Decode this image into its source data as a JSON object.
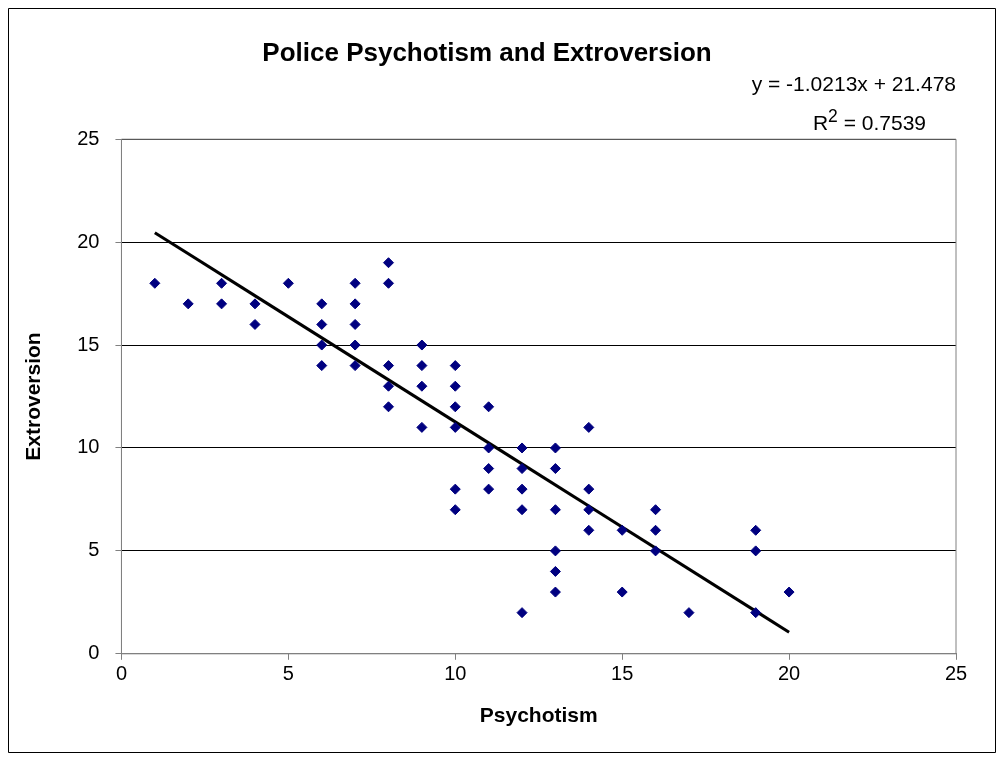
{
  "chart_data": {
    "type": "scatter",
    "title": "Police Psychotism and Extroversion",
    "xlabel": "Psychotism",
    "ylabel": "Extroversion",
    "annotations": [
      "y = -1.0213x + 21.478",
      "R$^{2}$ = 0.7539"
    ],
    "xlim": [
      0,
      25
    ],
    "xticks": [
      0,
      5,
      10,
      15,
      20,
      25
    ],
    "ylim": [
      0,
      25
    ],
    "yticks": [
      0,
      5,
      10,
      15,
      20,
      25
    ],
    "grid": "y",
    "legend": false,
    "marker": "diamond",
    "series": [
      {
        "type": "scatter",
        "color": "#000080",
        "x": [
          1,
          2,
          3,
          3,
          4,
          4,
          5,
          6,
          6,
          6,
          6,
          7,
          7,
          7,
          7,
          7,
          8,
          8,
          8,
          8,
          8,
          9,
          9,
          9,
          9,
          10,
          10,
          10,
          10,
          10,
          10,
          11,
          11,
          11,
          11,
          12,
          12,
          12,
          12,
          12,
          13,
          13,
          13,
          13,
          13,
          13,
          14,
          14,
          14,
          14,
          15,
          15,
          16,
          16,
          16,
          17,
          19,
          19,
          19,
          20
        ],
        "values": [
          18,
          17,
          18,
          17,
          17,
          16,
          18,
          17,
          16,
          15,
          14,
          18,
          17,
          16,
          15,
          14,
          19,
          18,
          14,
          13,
          12,
          15,
          14,
          13,
          11,
          14,
          13,
          12,
          11,
          8,
          7,
          12,
          10,
          9,
          8,
          10,
          9,
          8,
          7,
          2,
          10,
          9,
          7,
          5,
          4,
          3,
          11,
          8,
          7,
          6,
          6,
          3,
          7,
          6,
          5,
          2,
          6,
          5,
          2,
          3
        ]
      },
      {
        "type": "line",
        "color": "#000000",
        "marker": "none",
        "x": [
          1,
          20
        ],
        "values": [
          20.46,
          1.05
        ]
      }
    ]
  }
}
